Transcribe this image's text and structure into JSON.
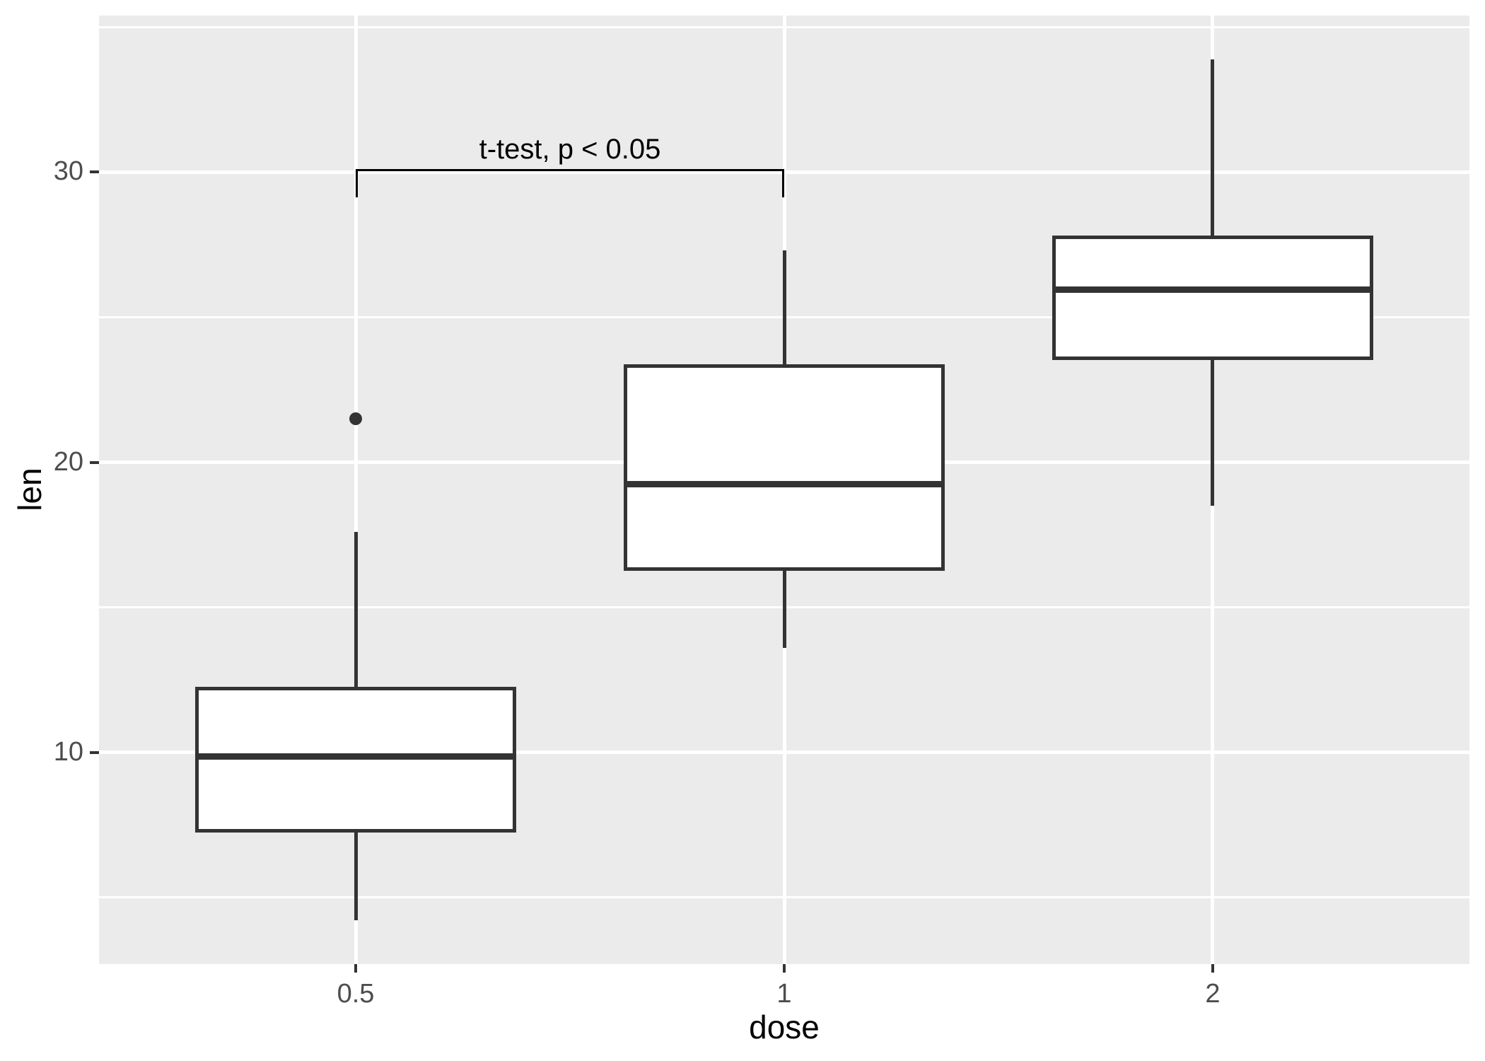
{
  "figure": {
    "background": "#FFFFFF",
    "panel_background": "#EBEBEB",
    "gridline_color": "#FFFFFF",
    "axis_text_color": "#4D4D4D",
    "axis_title_color": "#000000",
    "tick_mark_color": "#333333"
  },
  "chart_data": {
    "type": "boxplot",
    "title": "",
    "xlabel": "dose",
    "ylabel": "len",
    "categories": [
      "0.5",
      "1",
      "2"
    ],
    "y_axis": {
      "ticks": [
        10,
        20,
        30
      ],
      "tick_labels": [
        "10",
        "20",
        "30"
      ],
      "minor_ticks": [
        5,
        15,
        25,
        35
      ],
      "domain": [
        2.7,
        35.4
      ]
    },
    "grid": true,
    "legend": "none",
    "box_fill": "#FFFFFF",
    "box_color": "#333333",
    "outlier_color": "#333333",
    "series": [
      {
        "category": "0.5",
        "whisker_low": 4.2,
        "q1": 7.225,
        "median": 9.85,
        "q3": 12.25,
        "whisker_high": 17.6,
        "outliers": [
          21.5
        ]
      },
      {
        "category": "1",
        "whisker_low": 13.6,
        "q1": 16.25,
        "median": 19.25,
        "q3": 23.375,
        "whisker_high": 27.3,
        "outliers": []
      },
      {
        "category": "2",
        "whisker_low": 18.5,
        "q1": 23.525,
        "median": 25.95,
        "q3": 27.825,
        "whisker_high": 33.9,
        "outliers": []
      }
    ],
    "annotation": {
      "label": "t-test, p < 0.05",
      "from_category": "0.5",
      "to_category": "1",
      "bracket_y": 30.07,
      "tick_drop": 0.93,
      "color": "#000000"
    }
  }
}
